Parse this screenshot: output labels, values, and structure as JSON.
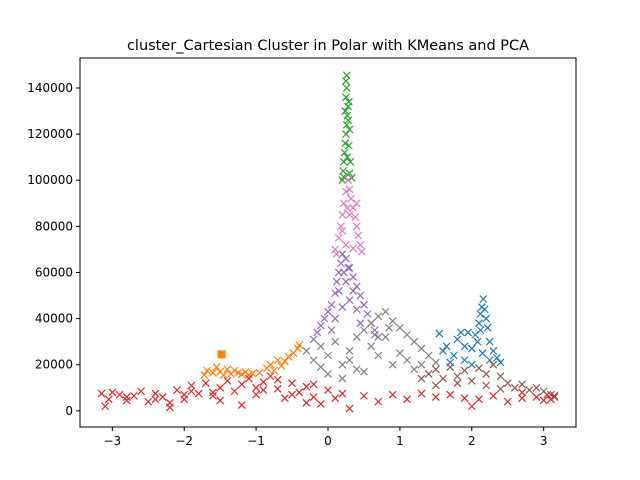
{
  "chart_data": {
    "type": "scatter",
    "title": "cluster_Cartesian Cluster in Polar with KMeans and PCA",
    "xlabel": "",
    "ylabel": "",
    "xlim": [
      -3.45,
      3.45
    ],
    "ylim": [
      -7000,
      153000
    ],
    "x_ticks": [
      -3,
      -2,
      -1,
      0,
      1,
      2,
      3
    ],
    "x_tick_labels": [
      "−3",
      "−2",
      "−1",
      "0",
      "1",
      "2",
      "3"
    ],
    "y_ticks": [
      0,
      20000,
      40000,
      60000,
      80000,
      100000,
      120000,
      140000
    ],
    "y_tick_labels": [
      "0",
      "20000",
      "40000",
      "60000",
      "80000",
      "100000",
      "120000",
      "140000"
    ],
    "grid": false,
    "marker": "x",
    "series": [
      {
        "color": "#1f77b4",
        "points": [
          [
            1.55,
            33500
          ],
          [
            1.65,
            28000
          ],
          [
            1.75,
            24000
          ],
          [
            1.8,
            31000
          ],
          [
            1.85,
            34000
          ],
          [
            1.9,
            28000
          ],
          [
            1.95,
            34000
          ],
          [
            2.0,
            27000
          ],
          [
            2.05,
            33000
          ],
          [
            2.1,
            38000
          ],
          [
            2.12,
            42000
          ],
          [
            2.14,
            45000
          ],
          [
            2.16,
            48500
          ],
          [
            2.18,
            44000
          ],
          [
            2.2,
            40000
          ],
          [
            2.22,
            36000
          ],
          [
            2.25,
            30000
          ],
          [
            2.3,
            26000
          ],
          [
            2.35,
            23000
          ],
          [
            1.7,
            21000
          ],
          [
            1.9,
            22000
          ],
          [
            2.0,
            20000
          ],
          [
            2.15,
            25000
          ],
          [
            2.25,
            22000
          ],
          [
            2.08,
            30000
          ],
          [
            2.12,
            35000
          ],
          [
            1.6,
            26000
          ],
          [
            2.4,
            21000
          ]
        ]
      },
      {
        "color": "#ff7f0e",
        "points": [
          [
            -1.72,
            15500
          ],
          [
            -1.68,
            17500
          ],
          [
            -1.6,
            16500
          ],
          [
            -1.55,
            19000
          ],
          [
            -1.5,
            17000
          ],
          [
            -1.45,
            15500
          ],
          [
            -1.4,
            18000
          ],
          [
            -1.35,
            16000
          ],
          [
            -1.3,
            17500
          ],
          [
            -1.25,
            16500
          ],
          [
            -1.2,
            15800
          ],
          [
            -1.15,
            16800
          ],
          [
            -1.1,
            15600
          ],
          [
            -1.05,
            16200
          ],
          [
            -0.95,
            16500
          ],
          [
            -0.85,
            18500
          ],
          [
            -0.75,
            17500
          ],
          [
            -0.65,
            19500
          ],
          [
            -0.6,
            21500
          ],
          [
            -0.55,
            23500
          ],
          [
            -0.48,
            25000
          ],
          [
            -0.42,
            27000
          ],
          [
            -0.4,
            28500
          ],
          [
            -0.8,
            20000
          ],
          [
            -0.7,
            22000
          ]
        ],
        "square_points": [
          [
            -1.48,
            24500
          ]
        ]
      },
      {
        "color": "#2ca02c",
        "points": [
          [
            0.2,
            100000
          ],
          [
            0.21,
            104000
          ],
          [
            0.22,
            108000
          ],
          [
            0.23,
            112000
          ],
          [
            0.24,
            116000
          ],
          [
            0.25,
            120000
          ],
          [
            0.26,
            124000
          ],
          [
            0.27,
            128000
          ],
          [
            0.28,
            132000
          ],
          [
            0.25,
            136000
          ],
          [
            0.26,
            140000
          ],
          [
            0.25,
            143000
          ],
          [
            0.26,
            145500
          ],
          [
            0.3,
            103000
          ],
          [
            0.31,
            108000
          ],
          [
            0.29,
            115000
          ],
          [
            0.3,
            122000
          ],
          [
            0.28,
            126000
          ],
          [
            0.27,
            110000
          ],
          [
            0.22,
            101500
          ],
          [
            0.33,
            101000
          ],
          [
            0.24,
            130000
          ],
          [
            0.29,
            134000
          ]
        ]
      },
      {
        "color": "#d62728",
        "points": [
          [
            -3.15,
            7500
          ],
          [
            -3.1,
            2000
          ],
          [
            -3.05,
            5000
          ],
          [
            -3.0,
            8000
          ],
          [
            -2.9,
            7000
          ],
          [
            -2.8,
            4500
          ],
          [
            -2.7,
            6500
          ],
          [
            -2.6,
            8500
          ],
          [
            -2.5,
            4000
          ],
          [
            -2.4,
            7500
          ],
          [
            -2.3,
            6000
          ],
          [
            -2.2,
            3500
          ],
          [
            -2.1,
            9000
          ],
          [
            -2.0,
            5000
          ],
          [
            -1.9,
            11000
          ],
          [
            -1.8,
            7500
          ],
          [
            -1.7,
            12000
          ],
          [
            -1.6,
            6500
          ],
          [
            -1.5,
            10000
          ],
          [
            -1.4,
            13000
          ],
          [
            -1.3,
            8500
          ],
          [
            -1.2,
            11500
          ],
          [
            -1.1,
            14000
          ],
          [
            -1.0,
            7000
          ],
          [
            -0.9,
            12500
          ],
          [
            -0.8,
            15000
          ],
          [
            -0.7,
            9500
          ],
          [
            -0.6,
            5500
          ],
          [
            -0.5,
            12000
          ],
          [
            -0.4,
            8000
          ],
          [
            -0.3,
            10500
          ],
          [
            -0.2,
            6000
          ],
          [
            -0.1,
            3000
          ],
          [
            0.0,
            9000
          ],
          [
            0.1,
            5500
          ],
          [
            0.2,
            7500
          ],
          [
            0.3,
            1000
          ],
          [
            0.5,
            6500
          ],
          [
            0.7,
            4000
          ],
          [
            0.9,
            7000
          ],
          [
            1.1,
            5000
          ],
          [
            1.3,
            7500
          ],
          [
            1.5,
            6000
          ],
          [
            1.7,
            7000
          ],
          [
            1.9,
            5500
          ],
          [
            2.0,
            2000
          ],
          [
            2.1,
            5000
          ],
          [
            2.3,
            6500
          ],
          [
            2.5,
            4000
          ],
          [
            2.7,
            5500
          ],
          [
            2.9,
            6000
          ],
          [
            3.0,
            4500
          ],
          [
            3.05,
            7000
          ],
          [
            3.1,
            5000
          ],
          [
            3.15,
            6500
          ],
          [
            -2.2,
            1500
          ],
          [
            -1.2,
            2500
          ],
          [
            -0.3,
            3500
          ],
          [
            -1.9,
            8500
          ],
          [
            -1.5,
            4500
          ],
          [
            -0.9,
            9000
          ],
          [
            -0.7,
            13500
          ],
          [
            -2.8,
            6000
          ],
          [
            -2.4,
            5000
          ],
          [
            -2.0,
            7000
          ],
          [
            -1.6,
            8000
          ],
          [
            -1.0,
            10000
          ],
          [
            -0.5,
            7000
          ],
          [
            -0.2,
            11500
          ],
          [
            2.7,
            8000
          ]
        ]
      },
      {
        "color": "#9467bd",
        "points": [
          [
            -0.2,
            31000
          ],
          [
            -0.15,
            34000
          ],
          [
            -0.1,
            37000
          ],
          [
            -0.05,
            40000
          ],
          [
            0.0,
            43000
          ],
          [
            0.05,
            46000
          ],
          [
            0.1,
            51000
          ],
          [
            0.12,
            56000
          ],
          [
            0.15,
            60000
          ],
          [
            0.18,
            64000
          ],
          [
            0.2,
            68000
          ],
          [
            0.25,
            66000
          ],
          [
            0.3,
            62000
          ],
          [
            0.35,
            58000
          ],
          [
            0.4,
            54000
          ],
          [
            0.45,
            50000
          ],
          [
            0.5,
            46000
          ],
          [
            0.55,
            42000
          ],
          [
            0.6,
            38000
          ],
          [
            0.65,
            35000
          ],
          [
            0.7,
            32000
          ],
          [
            0.1,
            40000
          ],
          [
            0.2,
            45000
          ],
          [
            0.3,
            48000
          ],
          [
            0.4,
            44000
          ],
          [
            0.15,
            52000
          ],
          [
            0.25,
            56000
          ],
          [
            0.35,
            52000
          ],
          [
            0.05,
            35000
          ],
          [
            0.45,
            38000
          ],
          [
            0.22,
            60000
          ],
          [
            0.28,
            62000
          ]
        ]
      },
      {
        "color": "#8c564b",
        "points": [
          [
            1.4,
            16000
          ],
          [
            1.5,
            18000
          ],
          [
            1.6,
            14000
          ],
          [
            1.7,
            19000
          ],
          [
            1.8,
            15000
          ],
          [
            1.9,
            17500
          ],
          [
            2.0,
            13000
          ],
          [
            2.1,
            18500
          ],
          [
            2.2,
            16000
          ],
          [
            2.3,
            20000
          ],
          [
            2.4,
            15000
          ],
          [
            2.5,
            12000
          ],
          [
            2.6,
            10000
          ],
          [
            2.7,
            11500
          ],
          [
            2.8,
            9000
          ],
          [
            2.9,
            10000
          ],
          [
            3.0,
            8500
          ],
          [
            3.1,
            7000
          ],
          [
            3.15,
            6000
          ],
          [
            1.5,
            11000
          ],
          [
            1.8,
            12000
          ],
          [
            2.2,
            11000
          ],
          [
            2.4,
            9500
          ],
          [
            1.3,
            14000
          ]
        ]
      },
      {
        "color": "#e377c2",
        "points": [
          [
            0.1,
            70000
          ],
          [
            0.15,
            75000
          ],
          [
            0.18,
            80000
          ],
          [
            0.2,
            85000
          ],
          [
            0.22,
            90000
          ],
          [
            0.25,
            95000
          ],
          [
            0.28,
            100000
          ],
          [
            0.3,
            96000
          ],
          [
            0.32,
            92000
          ],
          [
            0.35,
            88000
          ],
          [
            0.38,
            84000
          ],
          [
            0.4,
            80000
          ],
          [
            0.42,
            76000
          ],
          [
            0.45,
            72000
          ],
          [
            0.35,
            70500
          ],
          [
            0.25,
            72000
          ],
          [
            0.3,
            85000
          ],
          [
            0.2,
            78000
          ],
          [
            0.4,
            90000
          ],
          [
            0.12,
            68000
          ],
          [
            0.47,
            69000
          ],
          [
            0.27,
            88000
          ]
        ]
      },
      {
        "color": "#7f7f7f",
        "points": [
          [
            -0.3,
            26000
          ],
          [
            -0.2,
            22000
          ],
          [
            -0.1,
            28000
          ],
          [
            0.0,
            24000
          ],
          [
            0.1,
            30000
          ],
          [
            0.2,
            20000
          ],
          [
            0.3,
            26000
          ],
          [
            0.4,
            32000
          ],
          [
            0.5,
            35000
          ],
          [
            0.6,
            38000
          ],
          [
            0.7,
            41000
          ],
          [
            0.8,
            43000
          ],
          [
            0.9,
            39000
          ],
          [
            1.0,
            36000
          ],
          [
            1.1,
            33000
          ],
          [
            1.2,
            30000
          ],
          [
            1.3,
            27000
          ],
          [
            1.4,
            24000
          ],
          [
            1.5,
            21000
          ],
          [
            0.6,
            28000
          ],
          [
            0.8,
            32000
          ],
          [
            1.0,
            25000
          ],
          [
            0.4,
            18000
          ],
          [
            0.2,
            14000
          ],
          [
            0.7,
            24000
          ],
          [
            0.9,
            20000
          ],
          [
            1.1,
            22000
          ],
          [
            1.2,
            18000
          ],
          [
            0.3,
            22000
          ],
          [
            0.5,
            17000
          ],
          [
            0.0,
            16000
          ],
          [
            -0.1,
            19000
          ],
          [
            1.3,
            20000
          ],
          [
            0.85,
            36000
          ],
          [
            0.65,
            33000
          ]
        ]
      }
    ]
  }
}
